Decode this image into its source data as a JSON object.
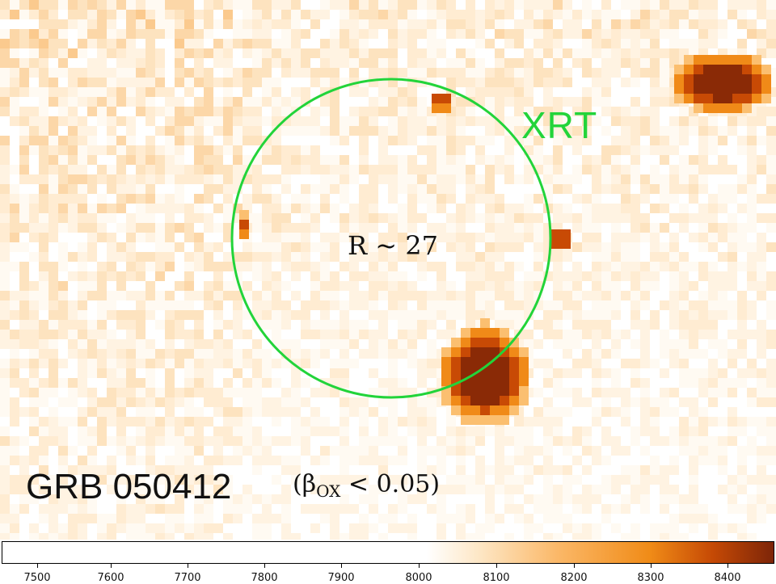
{
  "image": {
    "title_label": "GRB 050412",
    "beta_prefix": "(β",
    "beta_sub": "OX",
    "beta_suffix": " < 0.05)",
    "magnitude_label": "R ~ 27",
    "circle_label": "XRT",
    "circle_color": "#22d43a"
  },
  "colorbar": {
    "ticks": [
      "7500",
      "7600",
      "7700",
      "7800",
      "7900",
      "8000",
      "8100",
      "8200",
      "8300",
      "8400"
    ]
  }
}
